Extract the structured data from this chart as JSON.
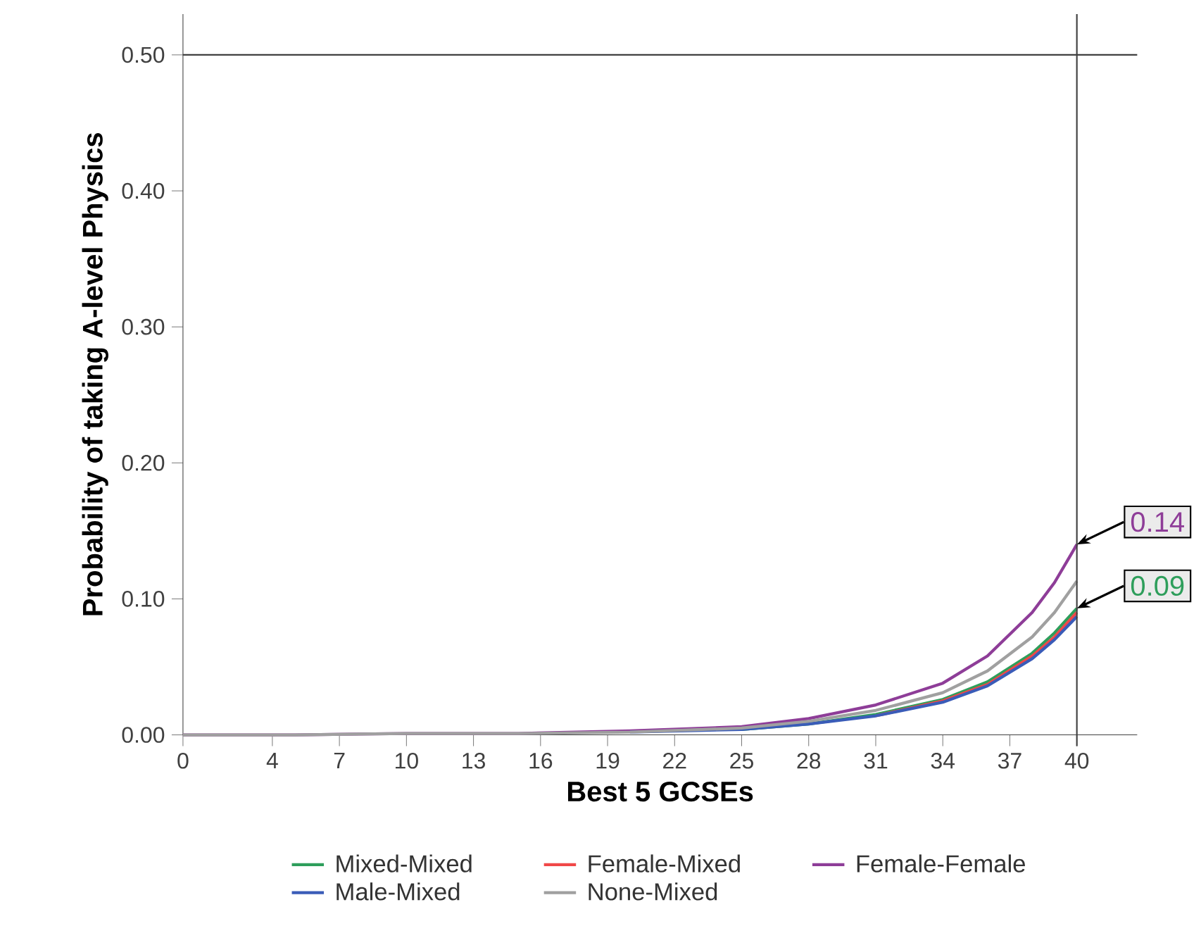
{
  "chart_data": {
    "type": "line",
    "xlabel": "Best 5 GCSEs",
    "ylabel": "Probability of taking A-level Physics",
    "x": [
      0,
      5,
      10,
      15,
      20,
      25,
      28,
      31,
      34,
      36,
      38,
      39,
      40
    ],
    "series": [
      {
        "name": "Mixed-Mixed",
        "color": "#2e9e5b",
        "values": [
          null,
          null,
          null,
          null,
          null,
          0.004,
          0.008,
          0.015,
          0.026,
          0.039,
          0.06,
          0.075,
          0.093
        ]
      },
      {
        "name": "Female-Mixed",
        "color": "#f04848",
        "values": [
          null,
          null,
          null,
          null,
          null,
          null,
          null,
          0.014,
          0.025,
          0.037,
          0.058,
          0.072,
          0.09
        ]
      },
      {
        "name": "Female-Female",
        "color": "#8e3d98",
        "values": [
          0.0,
          0.0,
          0.001,
          0.001,
          0.003,
          0.006,
          0.012,
          0.022,
          0.038,
          0.058,
          0.09,
          0.112,
          0.14
        ]
      },
      {
        "name": "Male-Mixed",
        "color": "#3a5cb8",
        "values": [
          null,
          null,
          null,
          null,
          0.002,
          0.004,
          0.008,
          0.014,
          0.024,
          0.036,
          0.056,
          0.07,
          0.087
        ]
      },
      {
        "name": "None-Mixed",
        "color": "#a0a0a0",
        "values": [
          0.0,
          0.0,
          0.001,
          0.001,
          0.002,
          0.005,
          0.01,
          0.018,
          0.031,
          0.047,
          0.072,
          0.09,
          0.113
        ]
      }
    ],
    "xlim": [
      0,
      42.7
    ],
    "ylim": [
      0,
      0.53
    ],
    "xticks": [
      0,
      4,
      7,
      10,
      13,
      16,
      19,
      22,
      25,
      28,
      31,
      34,
      37,
      40
    ],
    "yticks": [
      {
        "value": 0,
        "label": "0.00"
      },
      {
        "value": 0.1,
        "label": "0.10"
      },
      {
        "value": 0.2,
        "label": "0.20"
      },
      {
        "value": 0.3,
        "label": "0.30"
      },
      {
        "value": 0.4,
        "label": "0.40"
      },
      {
        "value": 0.5,
        "label": "0.50"
      }
    ],
    "ref_lines": [
      {
        "axis": "y",
        "value": 0.5
      },
      {
        "axis": "x",
        "value": 40
      }
    ],
    "annotations": [
      {
        "text": "0.14",
        "x": 40,
        "y": 0.14
      },
      {
        "text": "0.09",
        "x": 40,
        "y": 0.093
      }
    ],
    "legend": "bottom",
    "grid": false,
    "marker": "none",
    "line_style": "solid"
  }
}
